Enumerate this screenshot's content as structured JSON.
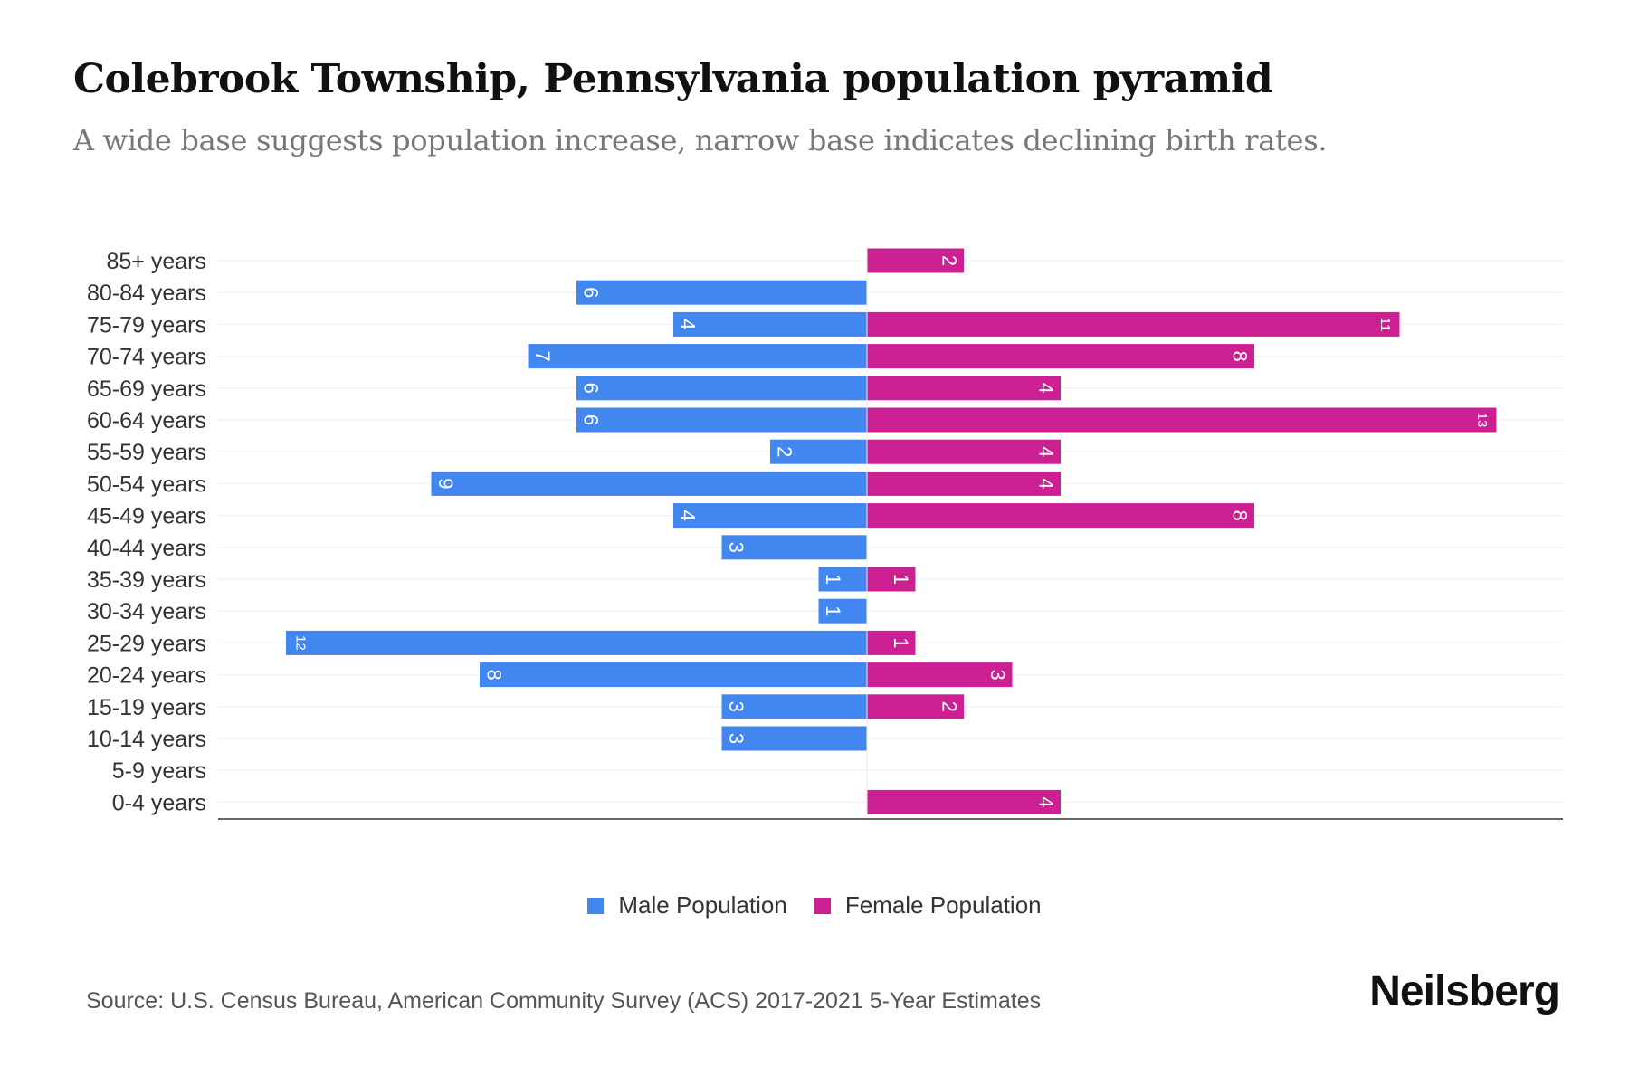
{
  "title": "Colebrook Township, Pennsylvania population pyramid",
  "subtitle": "A wide base suggests population increase, narrow base indicates declining birth rates.",
  "chart_data": {
    "type": "bar",
    "orientation": "horizontal-pyramid",
    "categories": [
      "85+ years",
      "80-84 years",
      "75-79 years",
      "70-74 years",
      "65-69 years",
      "60-64 years",
      "55-59 years",
      "50-54 years",
      "45-49 years",
      "40-44 years",
      "35-39 years",
      "30-34 years",
      "25-29 years",
      "20-24 years",
      "15-19 years",
      "10-14 years",
      "5-9 years",
      "0-4 years"
    ],
    "series": [
      {
        "name": "Male Population",
        "color": "#4287f0",
        "values": [
          0,
          6,
          4,
          7,
          6,
          6,
          2,
          9,
          4,
          3,
          1,
          1,
          12,
          8,
          3,
          3,
          0,
          0
        ]
      },
      {
        "name": "Female Population",
        "color": "#cc1f91",
        "values": [
          2,
          0,
          11,
          8,
          4,
          13,
          4,
          4,
          8,
          0,
          1,
          0,
          1,
          3,
          2,
          0,
          0,
          4
        ]
      }
    ],
    "xlim": [
      -13.5,
      15
    ],
    "legend": "bottom-center"
  },
  "legend": {
    "male": "Male Population",
    "female": "Female Population"
  },
  "source": "Source: U.S. Census Bureau, American Community Survey (ACS) 2017-2021 5-Year Estimates",
  "logo": "Neilsberg"
}
